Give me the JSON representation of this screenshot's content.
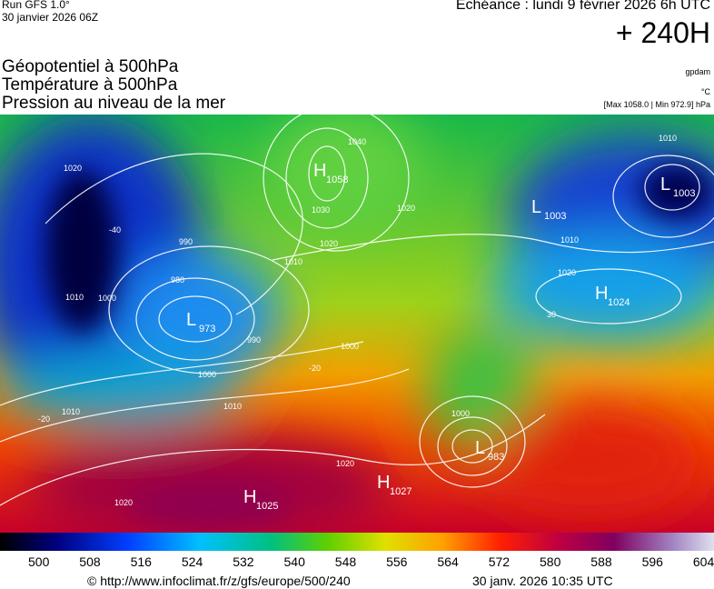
{
  "header": {
    "run": "Run GFS 1.0°",
    "run_date": "30 janvier 2026 06Z",
    "valid": "Echéance : lundi 9 février 2026 6h UTC",
    "lead": "+ 240H"
  },
  "titles": [
    "Géopotentiel à 500hPa",
    "Température à 500hPa",
    "Pression au niveau de la mer"
  ],
  "units": {
    "geopotential": "gpdam",
    "temperature": "°C",
    "pressure": "[Max 1058.0 | Min 972.9] hPa"
  },
  "centers": [
    {
      "type": "H",
      "value": "1058"
    },
    {
      "type": "L",
      "value": "1003"
    },
    {
      "type": "L",
      "value": "1003"
    },
    {
      "type": "L",
      "value": "973"
    },
    {
      "type": "H",
      "value": "1024"
    },
    {
      "type": "L",
      "value": "983"
    },
    {
      "type": "H",
      "value": "1027"
    },
    {
      "type": "H",
      "value": "1025"
    }
  ],
  "isobar_labels": [
    "1020",
    "1040",
    "1030",
    "1020",
    "1020",
    "1010",
    "1010",
    "1010",
    "1020",
    "990",
    "980",
    "1010",
    "1000",
    "990",
    "1000",
    "1000",
    "1010",
    "1010",
    "1020",
    "1020",
    "1000",
    "-20",
    "-20",
    "-40",
    "30"
  ],
  "colorbar": [
    "500",
    "508",
    "516",
    "524",
    "532",
    "540",
    "548",
    "556",
    "564",
    "572",
    "580",
    "588",
    "596",
    "604"
  ],
  "footer": {
    "source": "© http://www.infoclimat.fr/z/gfs/europe/500/240",
    "generated": "30 janv. 2026 10:35 UTC"
  }
}
